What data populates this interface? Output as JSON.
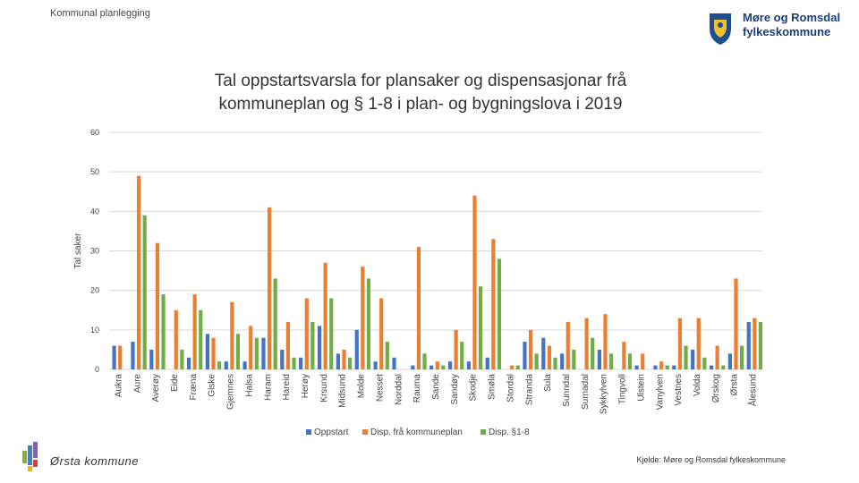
{
  "header": {
    "section_label": "Kommunal planlegging"
  },
  "logo": {
    "line1": "Møre og Romsdal",
    "line2": "fylkeskommune",
    "icon": "county-crest-icon"
  },
  "footer": {
    "organization": "Ørsta kommune",
    "source": "Kjelde: Møre og Romsdal fylkeskommune"
  },
  "colors": {
    "oppstart": "#4472c4",
    "disp_plan": "#ed7d31",
    "disp_18": "#70ad47",
    "grid": "#d9d9d9",
    "text": "#444444"
  },
  "chart_data": {
    "type": "bar",
    "title_line1": "Tal oppstartsvarsla for plansaker og dispensasjonar frå",
    "title_line2": "kommuneplan og § 1-8 i plan- og bygningslova i 2019",
    "ylabel": "Tal saker",
    "xlabel": "",
    "ylim": [
      0,
      60
    ],
    "yticks": [
      0,
      10,
      20,
      30,
      40,
      50,
      60
    ],
    "grid": true,
    "legend_position": "bottom",
    "categories": [
      "Aukra",
      "Aure",
      "Averøy",
      "Eide",
      "Fræna",
      "Giske",
      "Gjemnes",
      "Halsa",
      "Haram",
      "Hareid",
      "Herøy",
      "Krsund",
      "Midsund",
      "Molde",
      "Nesset",
      "Norddal",
      "Rauma",
      "Sande",
      "Sandøy",
      "Skodje",
      "Smøla",
      "Stordal",
      "Stranda",
      "Sula",
      "Sunndal",
      "Surnadal",
      "Sykkylven",
      "Tingvoll",
      "Ulstein",
      "Vanylven",
      "Vestnes",
      "Volda",
      "Ørskog",
      "Ørsta",
      "Ålesund"
    ],
    "series": [
      {
        "name": "Oppstart",
        "values": [
          6,
          7,
          5,
          0,
          3,
          9,
          2,
          2,
          8,
          5,
          3,
          11,
          4,
          10,
          2,
          3,
          1,
          1,
          2,
          2,
          3,
          0,
          7,
          8,
          4,
          0,
          5,
          0,
          1,
          1,
          1,
          5,
          1,
          4,
          12
        ]
      },
      {
        "name": "Disp. frå kommuneplan",
        "values": [
          6,
          49,
          32,
          15,
          19,
          8,
          17,
          11,
          41,
          12,
          18,
          27,
          5,
          26,
          18,
          0,
          31,
          2,
          10,
          44,
          33,
          1,
          10,
          6,
          12,
          13,
          14,
          7,
          4,
          2,
          13,
          13,
          6,
          23,
          13
        ]
      },
      {
        "name": "Disp. §1-8",
        "values": [
          0,
          39,
          19,
          5,
          15,
          2,
          9,
          8,
          23,
          3,
          12,
          18,
          3,
          23,
          7,
          0,
          4,
          1,
          7,
          21,
          28,
          1,
          4,
          3,
          5,
          8,
          4,
          4,
          0,
          1,
          6,
          3,
          1,
          6,
          12
        ]
      }
    ]
  }
}
